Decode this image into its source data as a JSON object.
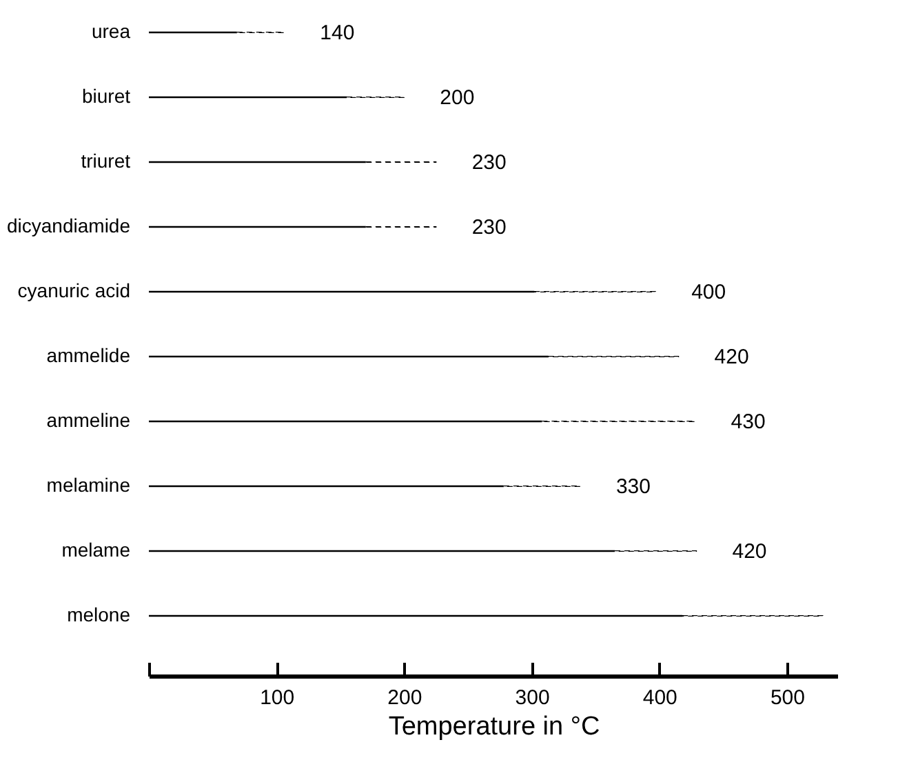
{
  "chart_data": {
    "type": "bar",
    "orientation": "horizontal",
    "stacked": true,
    "xlabel": "Temperature in °C",
    "categories": [
      "urea",
      "biuret",
      "triuret",
      "dicyandiamide",
      "cyanuric acid",
      "ammelide",
      "ammeline",
      "melamine",
      "melame",
      "melone"
    ],
    "series": [
      {
        "color": "#000000",
        "line_style": "solid",
        "values": [
          69,
          155,
          170,
          170,
          302,
          313,
          308,
          278,
          365,
          418
        ]
      },
      {
        "color": "#000000",
        "line_style": "dashed",
        "values": [
          37,
          45,
          55,
          55,
          95,
          102,
          120,
          60,
          64,
          110
        ]
      }
    ],
    "xlim": [
      0,
      540
    ],
    "xticks": [
      {
        "value": 0,
        "label": null
      },
      100,
      200,
      300,
      400,
      500
    ],
    "annotations": [
      "140",
      "200",
      "230",
      "230",
      "400",
      "420",
      "430",
      "330",
      "420"
    ],
    "grid": false
  }
}
